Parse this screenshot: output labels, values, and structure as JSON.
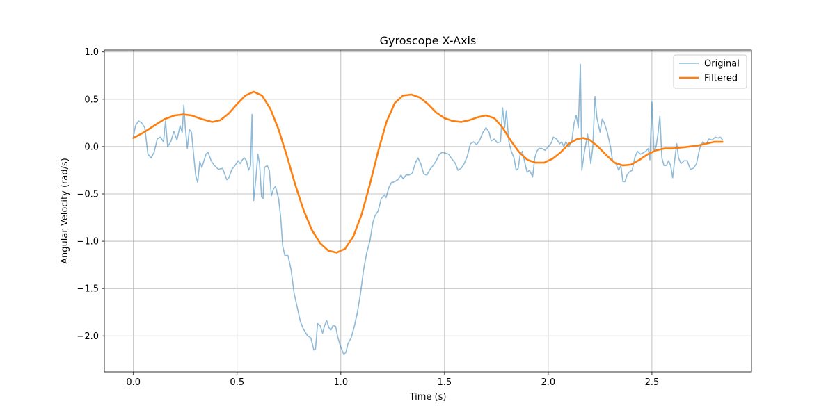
{
  "chart_data": {
    "type": "line",
    "title": "Gyroscope X-Axis",
    "xlabel": "Time (s)",
    "ylabel": "Angular Velocity (rad/s)",
    "xlim": [
      -0.14,
      2.98
    ],
    "ylim": [
      -2.38,
      1.02
    ],
    "x_ticks": [
      0.0,
      0.5,
      1.0,
      1.5,
      2.0,
      2.5
    ],
    "x_tick_labels": [
      "0.0",
      "0.5",
      "1.0",
      "1.5",
      "2.0",
      "2.5"
    ],
    "y_ticks": [
      1.0,
      0.5,
      0.0,
      -0.5,
      -1.0,
      -1.5,
      -2.0
    ],
    "y_tick_labels": [
      "1.0",
      "0.5",
      "0.0",
      "−0.5",
      "−1.0",
      "−1.5",
      "−2.0"
    ],
    "grid": true,
    "legend_position": "top-right",
    "series": [
      {
        "name": "Original",
        "color": "#1f77b4",
        "opacity": 0.5,
        "points": [
          [
            0.0,
            0.1
          ],
          [
            0.01,
            0.22
          ],
          [
            0.025,
            0.27
          ],
          [
            0.04,
            0.25
          ],
          [
            0.055,
            0.2
          ],
          [
            0.07,
            -0.08
          ],
          [
            0.085,
            -0.12
          ],
          [
            0.1,
            -0.06
          ],
          [
            0.115,
            0.08
          ],
          [
            0.13,
            0.1
          ],
          [
            0.145,
            0.05
          ],
          [
            0.155,
            0.27
          ],
          [
            0.165,
            0.0
          ],
          [
            0.18,
            0.05
          ],
          [
            0.195,
            0.16
          ],
          [
            0.21,
            0.07
          ],
          [
            0.225,
            0.22
          ],
          [
            0.235,
            0.15
          ],
          [
            0.243,
            0.44
          ],
          [
            0.25,
            0.2
          ],
          [
            0.26,
            -0.02
          ],
          [
            0.27,
            0.18
          ],
          [
            0.28,
            0.15
          ],
          [
            0.29,
            -0.08
          ],
          [
            0.3,
            -0.3
          ],
          [
            0.31,
            -0.38
          ],
          [
            0.32,
            -0.16
          ],
          [
            0.33,
            -0.22
          ],
          [
            0.35,
            -0.08
          ],
          [
            0.36,
            -0.06
          ],
          [
            0.375,
            -0.15
          ],
          [
            0.39,
            -0.2
          ],
          [
            0.41,
            -0.24
          ],
          [
            0.43,
            -0.23
          ],
          [
            0.45,
            -0.35
          ],
          [
            0.46,
            -0.33
          ],
          [
            0.475,
            -0.24
          ],
          [
            0.49,
            -0.2
          ],
          [
            0.505,
            -0.15
          ],
          [
            0.515,
            -0.18
          ],
          [
            0.525,
            -0.14
          ],
          [
            0.535,
            -0.12
          ],
          [
            0.545,
            -0.15
          ],
          [
            0.555,
            -0.25
          ],
          [
            0.565,
            -0.2
          ],
          [
            0.572,
            0.34
          ],
          [
            0.58,
            -0.57
          ],
          [
            0.59,
            -0.35
          ],
          [
            0.6,
            -0.08
          ],
          [
            0.608,
            -0.18
          ],
          [
            0.618,
            -0.53
          ],
          [
            0.625,
            -0.55
          ],
          [
            0.632,
            -0.22
          ],
          [
            0.645,
            -0.2
          ],
          [
            0.655,
            -0.25
          ],
          [
            0.665,
            -0.52
          ],
          [
            0.675,
            -0.45
          ],
          [
            0.685,
            -0.42
          ],
          [
            0.7,
            -0.55
          ],
          [
            0.71,
            -0.75
          ],
          [
            0.72,
            -1.05
          ],
          [
            0.73,
            -1.15
          ],
          [
            0.745,
            -1.15
          ],
          [
            0.76,
            -1.3
          ],
          [
            0.775,
            -1.55
          ],
          [
            0.79,
            -1.7
          ],
          [
            0.805,
            -1.85
          ],
          [
            0.82,
            -1.93
          ],
          [
            0.84,
            -2.0
          ],
          [
            0.855,
            -2.02
          ],
          [
            0.87,
            -2.15
          ],
          [
            0.878,
            -2.14
          ],
          [
            0.888,
            -1.87
          ],
          [
            0.9,
            -1.89
          ],
          [
            0.912,
            -1.97
          ],
          [
            0.922,
            -1.89
          ],
          [
            0.932,
            -1.84
          ],
          [
            0.942,
            -1.91
          ],
          [
            0.952,
            -1.94
          ],
          [
            0.962,
            -1.89
          ],
          [
            0.975,
            -1.9
          ],
          [
            0.985,
            -2.01
          ],
          [
            1.0,
            -2.12
          ],
          [
            1.015,
            -2.2
          ],
          [
            1.025,
            -2.17
          ],
          [
            1.035,
            -2.08
          ],
          [
            1.05,
            -2.02
          ],
          [
            1.065,
            -1.9
          ],
          [
            1.08,
            -1.75
          ],
          [
            1.095,
            -1.55
          ],
          [
            1.11,
            -1.3
          ],
          [
            1.125,
            -1.12
          ],
          [
            1.14,
            -1.0
          ],
          [
            1.155,
            -0.8
          ],
          [
            1.165,
            -0.73
          ],
          [
            1.18,
            -0.68
          ],
          [
            1.195,
            -0.55
          ],
          [
            1.21,
            -0.51
          ],
          [
            1.218,
            -0.54
          ],
          [
            1.232,
            -0.43
          ],
          [
            1.245,
            -0.38
          ],
          [
            1.26,
            -0.37
          ],
          [
            1.275,
            -0.35
          ],
          [
            1.29,
            -0.3
          ],
          [
            1.3,
            -0.34
          ],
          [
            1.315,
            -0.3
          ],
          [
            1.33,
            -0.3
          ],
          [
            1.345,
            -0.28
          ],
          [
            1.36,
            -0.17
          ],
          [
            1.372,
            -0.12
          ],
          [
            1.385,
            -0.18
          ],
          [
            1.4,
            -0.29
          ],
          [
            1.415,
            -0.3
          ],
          [
            1.43,
            -0.24
          ],
          [
            1.445,
            -0.2
          ],
          [
            1.46,
            -0.15
          ],
          [
            1.475,
            -0.08
          ],
          [
            1.49,
            -0.06
          ],
          [
            1.505,
            -0.07
          ],
          [
            1.52,
            -0.08
          ],
          [
            1.535,
            -0.13
          ],
          [
            1.55,
            -0.17
          ],
          [
            1.565,
            -0.25
          ],
          [
            1.58,
            -0.23
          ],
          [
            1.595,
            -0.18
          ],
          [
            1.61,
            -0.1
          ],
          [
            1.625,
            0.03
          ],
          [
            1.64,
            0.05
          ],
          [
            1.655,
            0.02
          ],
          [
            1.67,
            0.07
          ],
          [
            1.685,
            0.15
          ],
          [
            1.7,
            0.2
          ],
          [
            1.715,
            0.15
          ],
          [
            1.725,
            0.06
          ],
          [
            1.74,
            0.08
          ],
          [
            1.755,
            0.04
          ],
          [
            1.77,
            0.05
          ],
          [
            1.78,
            0.41
          ],
          [
            1.79,
            0.2
          ],
          [
            1.798,
            0.38
          ],
          [
            1.81,
            0.05
          ],
          [
            1.822,
            -0.05
          ],
          [
            1.835,
            -0.12
          ],
          [
            1.845,
            -0.25
          ],
          [
            1.855,
            -0.23
          ],
          [
            1.865,
            -0.08
          ],
          [
            1.875,
            -0.05
          ],
          [
            1.885,
            -0.15
          ],
          [
            1.898,
            -0.27
          ],
          [
            1.91,
            -0.25
          ],
          [
            1.925,
            -0.32
          ],
          [
            1.935,
            -0.12
          ],
          [
            1.945,
            -0.05
          ],
          [
            1.955,
            -0.02
          ],
          [
            1.97,
            -0.02
          ],
          [
            1.985,
            -0.04
          ],
          [
            2.0,
            0.0
          ],
          [
            2.015,
            0.04
          ],
          [
            2.025,
            0.1
          ],
          [
            2.04,
            0.08
          ],
          [
            2.055,
            0.03
          ],
          [
            2.065,
            0.05
          ],
          [
            2.075,
            0.0
          ],
          [
            2.085,
            0.05
          ],
          [
            2.1,
            0.0
          ],
          [
            2.113,
            0.05
          ],
          [
            2.125,
            0.25
          ],
          [
            2.135,
            0.33
          ],
          [
            2.145,
            0.2
          ],
          [
            2.155,
            0.87
          ],
          [
            2.162,
            -0.25
          ],
          [
            2.175,
            -0.05
          ],
          [
            2.19,
            0.13
          ],
          [
            2.205,
            -0.18
          ],
          [
            2.215,
            0.0
          ],
          [
            2.225,
            0.53
          ],
          [
            2.235,
            0.3
          ],
          [
            2.25,
            0.15
          ],
          [
            2.26,
            0.29
          ],
          [
            2.27,
            0.25
          ],
          [
            2.285,
            0.15
          ],
          [
            2.3,
            0.0
          ],
          [
            2.31,
            -0.15
          ],
          [
            2.325,
            -0.18
          ],
          [
            2.34,
            -0.25
          ],
          [
            2.35,
            -0.2
          ],
          [
            2.36,
            -0.37
          ],
          [
            2.37,
            -0.37
          ],
          [
            2.38,
            -0.3
          ],
          [
            2.39,
            -0.27
          ],
          [
            2.405,
            -0.25
          ],
          [
            2.418,
            -0.11
          ],
          [
            2.43,
            -0.05
          ],
          [
            2.445,
            -0.08
          ],
          [
            2.455,
            -0.07
          ],
          [
            2.47,
            -0.05
          ],
          [
            2.482,
            -0.02
          ],
          [
            2.49,
            -0.14
          ],
          [
            2.5,
            0.47
          ],
          [
            2.51,
            -0.05
          ],
          [
            2.52,
            0.0
          ],
          [
            2.53,
            0.15
          ],
          [
            2.538,
            0.32
          ],
          [
            2.548,
            -0.12
          ],
          [
            2.558,
            -0.2
          ],
          [
            2.57,
            -0.2
          ],
          [
            2.58,
            -0.15
          ],
          [
            2.59,
            -0.2
          ],
          [
            2.6,
            -0.33
          ],
          [
            2.612,
            -0.1
          ],
          [
            2.62,
            0.03
          ],
          [
            2.628,
            -0.12
          ],
          [
            2.64,
            -0.18
          ],
          [
            2.655,
            -0.15
          ],
          [
            2.67,
            -0.15
          ],
          [
            2.685,
            -0.24
          ],
          [
            2.7,
            -0.23
          ],
          [
            2.715,
            -0.18
          ],
          [
            2.73,
            -0.02
          ],
          [
            2.745,
            0.05
          ],
          [
            2.76,
            0.02
          ],
          [
            2.775,
            0.08
          ],
          [
            2.79,
            0.07
          ],
          [
            2.805,
            0.1
          ],
          [
            2.82,
            0.09
          ],
          [
            2.83,
            0.1
          ],
          [
            2.84,
            0.07
          ]
        ]
      },
      {
        "name": "Filtered",
        "color": "#ff7f0e",
        "opacity": 1,
        "points": [
          [
            0.0,
            0.09
          ],
          [
            0.05,
            0.15
          ],
          [
            0.1,
            0.22
          ],
          [
            0.15,
            0.29
          ],
          [
            0.2,
            0.33
          ],
          [
            0.24,
            0.34
          ],
          [
            0.28,
            0.33
          ],
          [
            0.33,
            0.29
          ],
          [
            0.38,
            0.26
          ],
          [
            0.42,
            0.28
          ],
          [
            0.46,
            0.35
          ],
          [
            0.5,
            0.45
          ],
          [
            0.54,
            0.54
          ],
          [
            0.58,
            0.58
          ],
          [
            0.62,
            0.54
          ],
          [
            0.66,
            0.4
          ],
          [
            0.7,
            0.18
          ],
          [
            0.74,
            -0.1
          ],
          [
            0.78,
            -0.4
          ],
          [
            0.82,
            -0.67
          ],
          [
            0.86,
            -0.88
          ],
          [
            0.9,
            -1.02
          ],
          [
            0.94,
            -1.1
          ],
          [
            0.98,
            -1.12
          ],
          [
            1.02,
            -1.08
          ],
          [
            1.06,
            -0.95
          ],
          [
            1.1,
            -0.72
          ],
          [
            1.14,
            -0.4
          ],
          [
            1.18,
            -0.05
          ],
          [
            1.22,
            0.26
          ],
          [
            1.26,
            0.46
          ],
          [
            1.3,
            0.54
          ],
          [
            1.34,
            0.55
          ],
          [
            1.38,
            0.52
          ],
          [
            1.42,
            0.45
          ],
          [
            1.46,
            0.36
          ],
          [
            1.5,
            0.3
          ],
          [
            1.54,
            0.27
          ],
          [
            1.58,
            0.26
          ],
          [
            1.62,
            0.28
          ],
          [
            1.66,
            0.31
          ],
          [
            1.7,
            0.33
          ],
          [
            1.74,
            0.3
          ],
          [
            1.78,
            0.2
          ],
          [
            1.82,
            0.06
          ],
          [
            1.86,
            -0.06
          ],
          [
            1.9,
            -0.14
          ],
          [
            1.94,
            -0.17
          ],
          [
            1.98,
            -0.17
          ],
          [
            2.02,
            -0.13
          ],
          [
            2.06,
            -0.06
          ],
          [
            2.1,
            0.03
          ],
          [
            2.14,
            0.08
          ],
          [
            2.17,
            0.09
          ],
          [
            2.2,
            0.07
          ],
          [
            2.24,
            0.0
          ],
          [
            2.28,
            -0.09
          ],
          [
            2.32,
            -0.17
          ],
          [
            2.36,
            -0.2
          ],
          [
            2.4,
            -0.19
          ],
          [
            2.44,
            -0.14
          ],
          [
            2.48,
            -0.08
          ],
          [
            2.52,
            -0.04
          ],
          [
            2.56,
            -0.02
          ],
          [
            2.6,
            -0.02
          ],
          [
            2.64,
            -0.01
          ],
          [
            2.68,
            0.0
          ],
          [
            2.72,
            0.01
          ],
          [
            2.76,
            0.03
          ],
          [
            2.8,
            0.05
          ],
          [
            2.84,
            0.05
          ]
        ]
      }
    ]
  }
}
